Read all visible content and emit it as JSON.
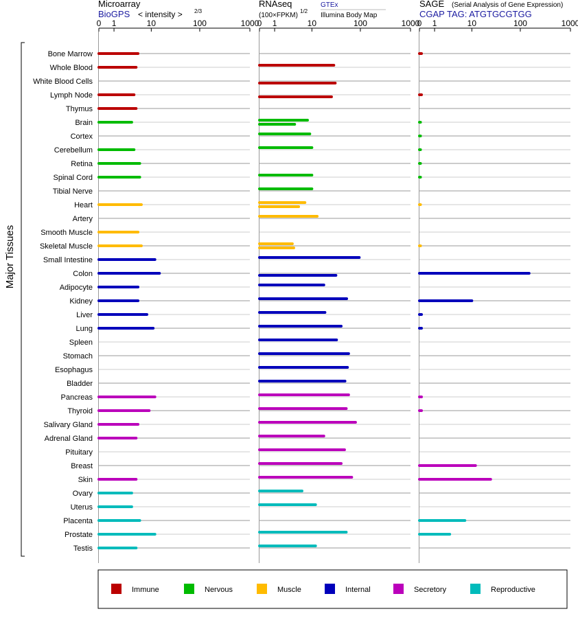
{
  "panels": {
    "microarray": {
      "title": "Microarray",
      "source": "BioGPS",
      "unit": "< intensity >",
      "exp": "2/3"
    },
    "rnaseq": {
      "title": "RNAseq",
      "unit": "(100×FPKM)",
      "exp": "1/2",
      "source1": "GTEx",
      "source2": "Illumina Body Map"
    },
    "sage": {
      "title": "SAGE",
      "subtitle": "(Serial Analysis of Gene Expression)",
      "tag": "CGAP TAG: ATGTGCGTGG"
    }
  },
  "axis_ticks": [
    "0",
    "1",
    "10",
    "100",
    "1000"
  ],
  "side_label": "Major Tissues",
  "legend": [
    {
      "label": "Immune",
      "color": "#bb0000"
    },
    {
      "label": "Nervous",
      "color": "#00bb00"
    },
    {
      "label": "Muscle",
      "color": "#ffbb00"
    },
    {
      "label": "Internal",
      "color": "#0000bb"
    },
    {
      "label": "Secretory",
      "color": "#bb00bb"
    },
    {
      "label": "Reproductive",
      "color": "#00bbbb"
    }
  ],
  "chart_data": {
    "type": "bar",
    "scale": "log(1+x)",
    "xlim": [
      0,
      1000
    ],
    "categories": [
      "Bone Marrow",
      "Whole Blood",
      "White Blood Cells",
      "Lymph Node",
      "Thymus",
      "Brain",
      "Cortex",
      "Cerebellum",
      "Retina",
      "Spinal Cord",
      "Tibial Nerve",
      "Heart",
      "Artery",
      "Smooth Muscle",
      "Skeletal Muscle",
      "Small Intestine",
      "Colon",
      "Adipocyte",
      "Kidney",
      "Liver",
      "Lung",
      "Spleen",
      "Stomach",
      "Esophagus",
      "Bladder",
      "Pancreas",
      "Thyroid",
      "Salivary Gland",
      "Adrenal Gland",
      "Pituitary",
      "Breast",
      "Skin",
      "Ovary",
      "Uterus",
      "Placenta",
      "Prostate",
      "Testis"
    ],
    "system": [
      "Immune",
      "Immune",
      "Immune",
      "Immune",
      "Immune",
      "Nervous",
      "Nervous",
      "Nervous",
      "Nervous",
      "Nervous",
      "Nervous",
      "Muscle",
      "Muscle",
      "Muscle",
      "Muscle",
      "Internal",
      "Internal",
      "Internal",
      "Internal",
      "Internal",
      "Internal",
      "Internal",
      "Internal",
      "Internal",
      "Internal",
      "Secretory",
      "Secretory",
      "Secretory",
      "Secretory",
      "Secretory",
      "Secretory",
      "Secretory",
      "Reproductive",
      "Reproductive",
      "Reproductive",
      "Reproductive",
      "Reproductive"
    ],
    "microarray": [
      5,
      4.5,
      null,
      4,
      4.5,
      3.5,
      null,
      4,
      5.5,
      5.5,
      null,
      6,
      null,
      5,
      6,
      12,
      15,
      5,
      5,
      8,
      11,
      null,
      null,
      null,
      null,
      12,
      9,
      5,
      4.5,
      null,
      null,
      4.5,
      3.5,
      3.5,
      5.5,
      12,
      4.5
    ],
    "rnaseq_gtex": [
      null,
      29,
      31,
      null,
      null,
      8,
      null,
      10,
      null,
      10,
      10,
      7,
      13,
      null,
      3.5,
      null,
      null,
      18,
      53,
      19,
      41,
      null,
      null,
      null,
      null,
      null,
      52,
      null,
      18,
      48,
      41,
      null,
      6,
      null,
      null,
      55,
      12
    ],
    "rnaseq_ibm": [
      null,
      null,
      null,
      26,
      null,
      null,
      null,
      null,
      null,
      null,
      null,
      null,
      null,
      null,
      null,
      null,
      null,
      null,
      null,
      null,
      null,
      null,
      null,
      null,
      null,
      null,
      null,
      null,
      null,
      null,
      null,
      null,
      null,
      null,
      null,
      null,
      null
    ],
    "rnaseq_gtex_first": [
      null,
      29,
      null,
      null,
      null,
      8,
      9,
      10,
      null,
      10,
      10,
      7,
      13,
      null,
      3.5,
      95,
      null,
      18,
      53,
      19,
      41,
      33,
      58,
      55,
      49,
      58,
      52,
      80,
      18,
      48,
      41,
      67,
      6,
      12,
      null,
      52,
      12
    ],
    "rnaseq_second": [
      null,
      null,
      31,
      26,
      null,
      4,
      null,
      null,
      null,
      null,
      null,
      5,
      null,
      null,
      3.8,
      null,
      32,
      null,
      null,
      null,
      null,
      null,
      null,
      null,
      null,
      null,
      null,
      null,
      null,
      null,
      null,
      null,
      null,
      null,
      null,
      null,
      null
    ],
    "sage": [
      0.1,
      null,
      null,
      0.1,
      null,
      0.05,
      0.05,
      0.05,
      0.05,
      0.05,
      null,
      0.05,
      null,
      null,
      0.05,
      null,
      150,
      null,
      10,
      0.1,
      0.1,
      null,
      null,
      null,
      null,
      0.1,
      0.1,
      null,
      null,
      null,
      12,
      25,
      null,
      null,
      7,
      3,
      null
    ]
  }
}
